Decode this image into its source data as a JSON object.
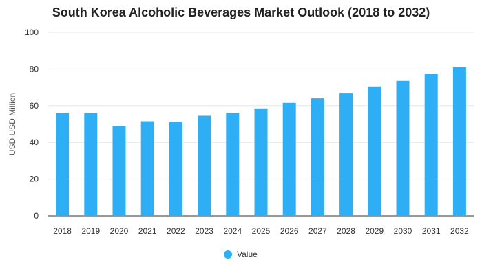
{
  "chart_data": {
    "type": "bar",
    "title": "South Korea Alcoholic Beverages Market Outlook (2018 to 2032)",
    "xlabel": "",
    "ylabel": "USD USD Million",
    "categories": [
      "2018",
      "2019",
      "2020",
      "2021",
      "2022",
      "2023",
      "2024",
      "2025",
      "2026",
      "2027",
      "2028",
      "2029",
      "2030",
      "2031",
      "2032"
    ],
    "series": [
      {
        "name": "Value",
        "values": [
          56,
          56,
          49,
          51.5,
          51,
          54.5,
          56,
          58.5,
          61.5,
          64,
          67,
          70.5,
          73.5,
          77.5,
          81
        ]
      }
    ],
    "ylim": [
      0,
      100
    ],
    "yticks": [
      0,
      20,
      40,
      60,
      80,
      100
    ],
    "grid": true,
    "legend_position": "bottom-center",
    "colors": {
      "bar": "#2EAEF5",
      "grid": "#E6E6E6",
      "axis": "#333333"
    }
  }
}
